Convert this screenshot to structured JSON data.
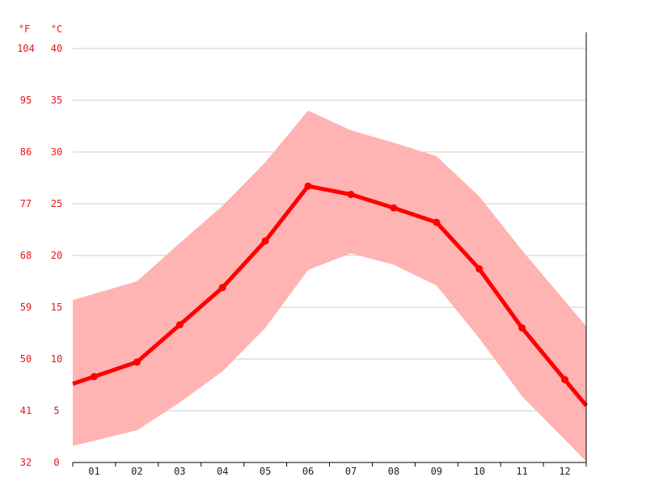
{
  "chart_data": {
    "type": "area",
    "title": "",
    "xlabel": "",
    "ylabel": "",
    "units": {
      "fahrenheit": "°F",
      "celsius": "°C"
    },
    "categories": [
      "01",
      "02",
      "03",
      "04",
      "05",
      "06",
      "07",
      "08",
      "09",
      "10",
      "11",
      "12"
    ],
    "ylim": [
      0,
      40
    ],
    "yticks_c": [
      "0",
      "5",
      "10",
      "15",
      "20",
      "25",
      "30",
      "35",
      "40"
    ],
    "yticks_f": [
      "32",
      "41",
      "50",
      "59",
      "68",
      "77",
      "86",
      "95",
      "104"
    ],
    "grid": true,
    "series": [
      {
        "values": [
          8.3,
          9.7,
          13.3,
          16.9,
          21.4,
          26.7,
          25.9,
          24.6,
          23.2,
          18.7,
          13.0,
          8.0
        ]
      },
      {
        "values": [
          16.3,
          17.5,
          21.2,
          24.8,
          29.0,
          34.0,
          32.1,
          30.9,
          29.6,
          25.7,
          20.5,
          15.6
        ]
      },
      {
        "values": [
          2.1,
          3.1,
          5.8,
          8.8,
          13.0,
          18.6,
          20.2,
          19.1,
          17.1,
          12.0,
          6.4,
          2.2
        ]
      }
    ],
    "colors": {
      "line": "#ff0000",
      "range": "#ffb3b3",
      "grid": "#cccccc",
      "axis": "#000000",
      "ytick": "#e8141b",
      "xtick": "#222222"
    }
  }
}
